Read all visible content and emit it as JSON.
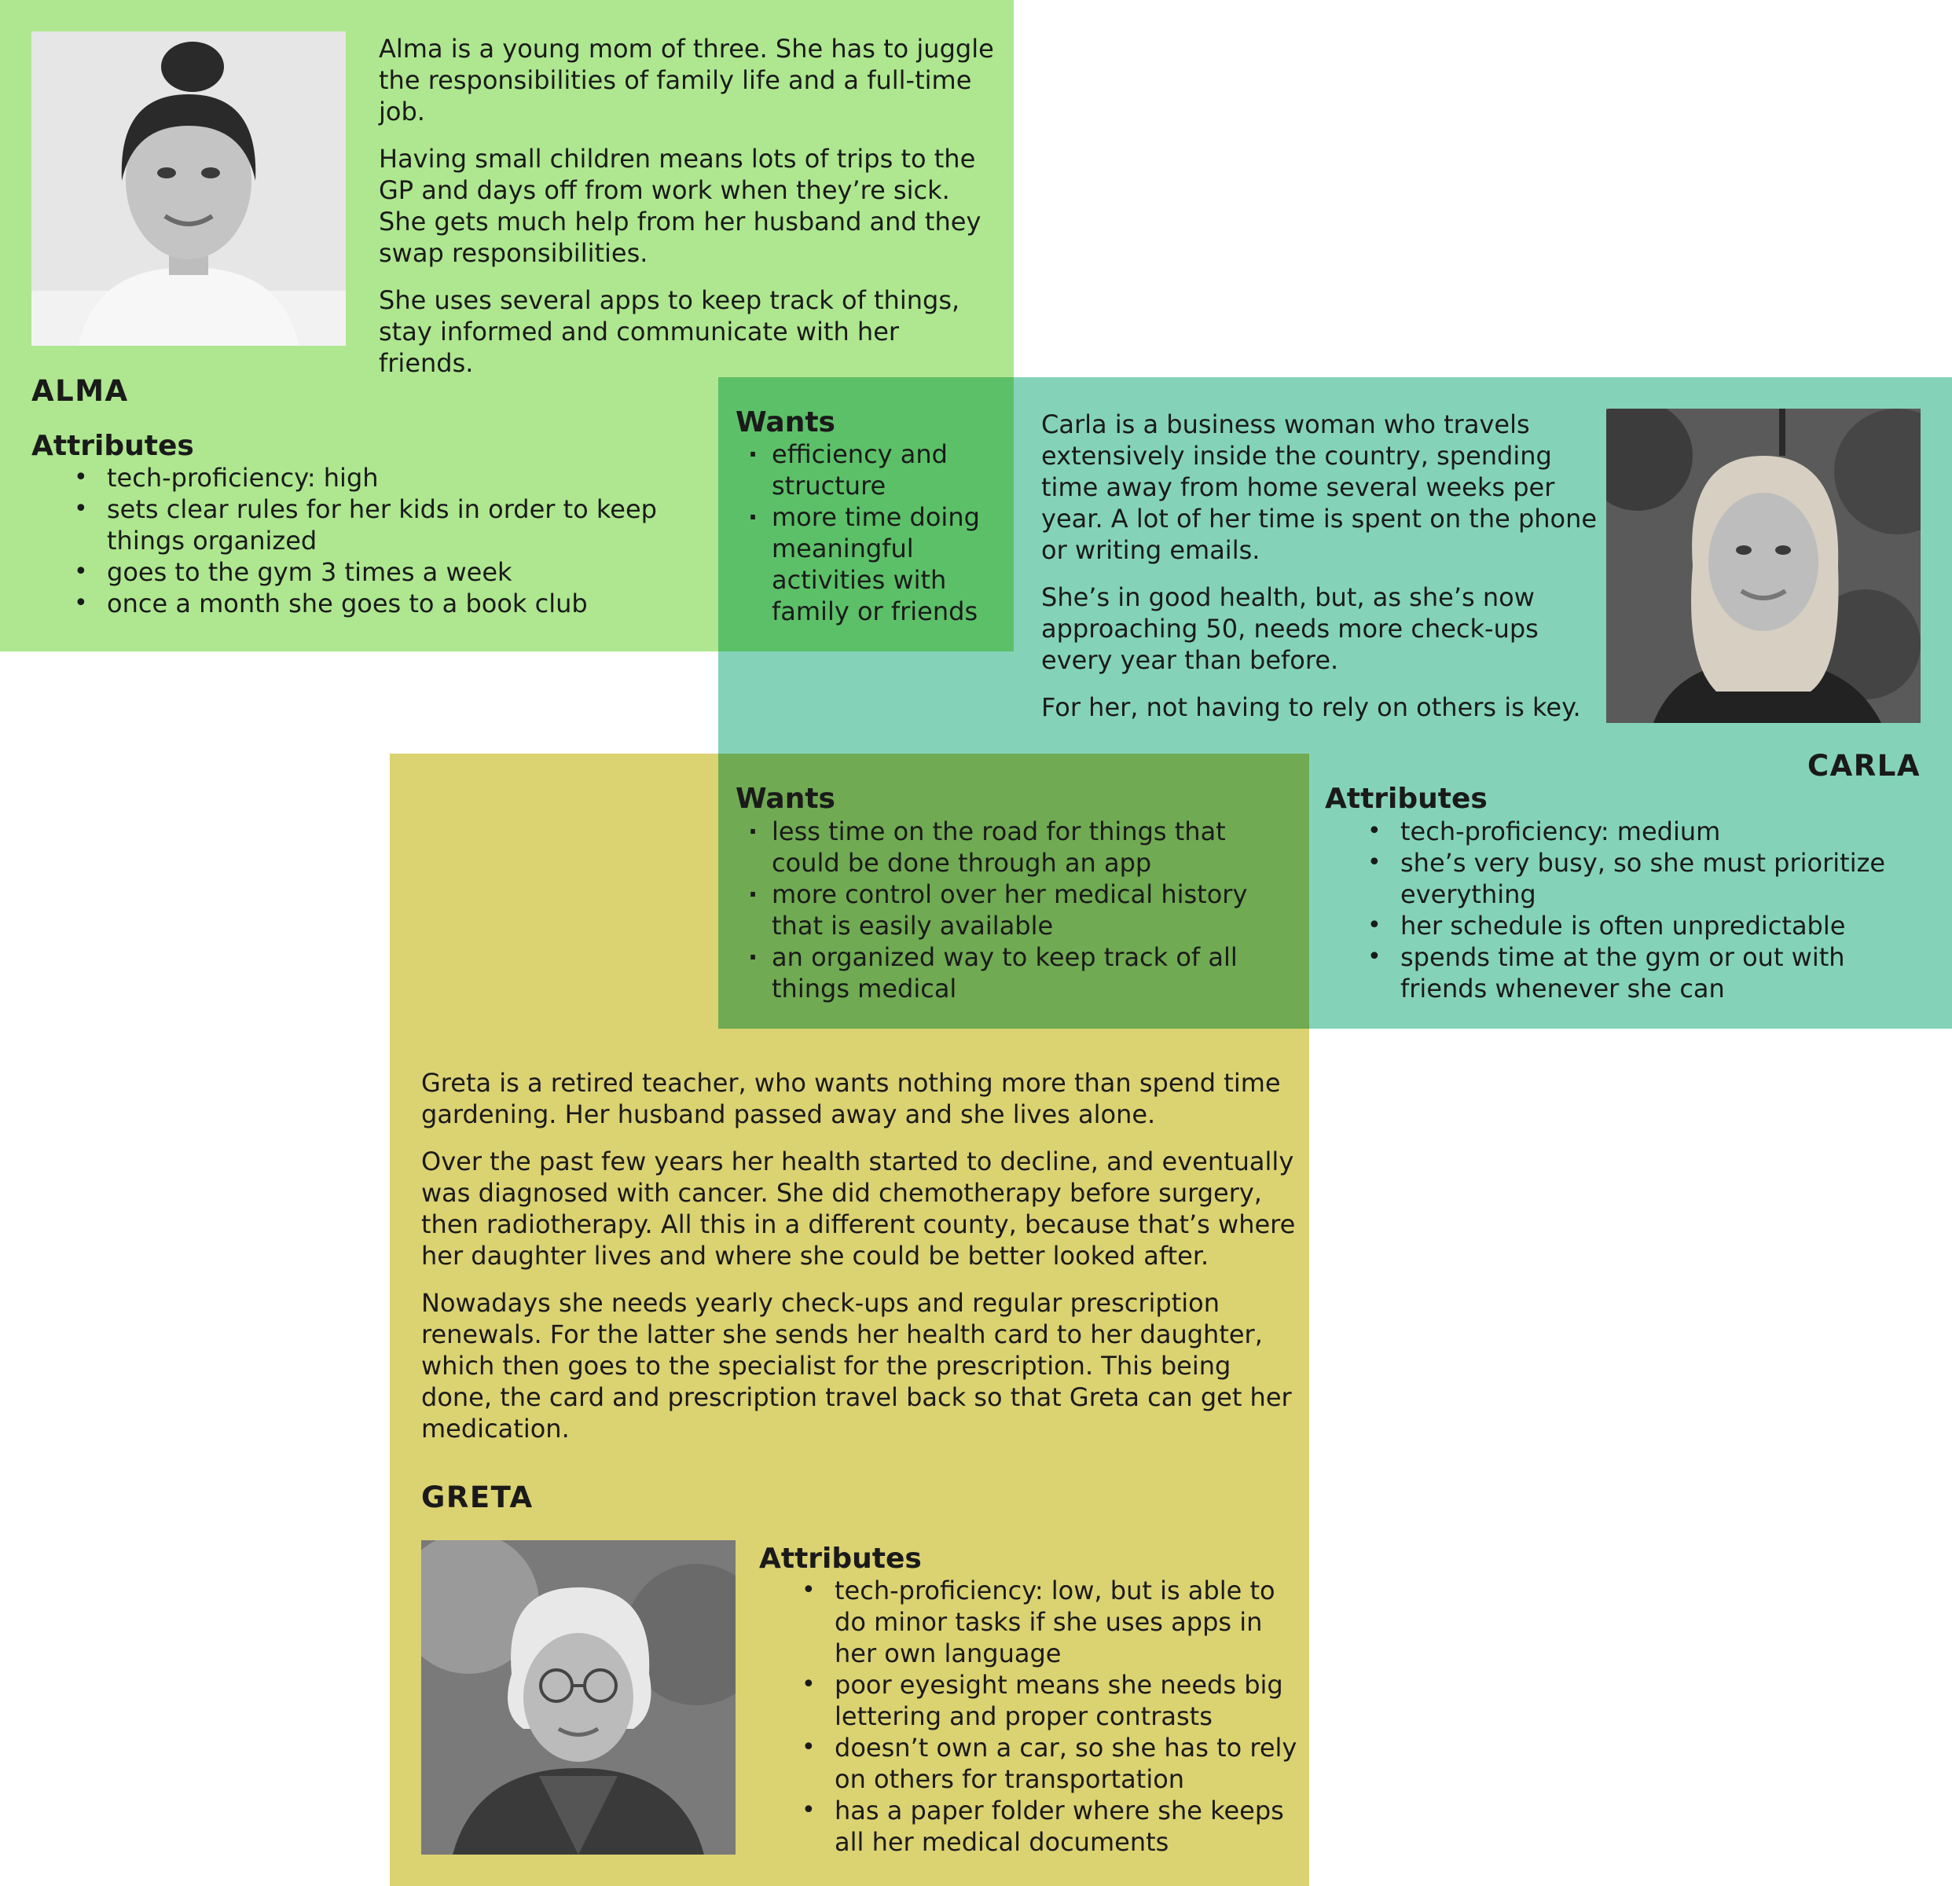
{
  "alma": {
    "name": "ALMA",
    "bio": [
      "Alma is a young mom of three. She has to juggle the responsibilities of family life and a full-time job.",
      "Having small children means lots of trips to the GP and days off from work when they’re sick. She gets much help from her husband and they swap responsibilities.",
      "She uses several apps to keep track of things, stay informed and communicate with her friends."
    ],
    "attributes_heading": "Attributes",
    "attributes": [
      "tech-proficiency: high",
      "sets clear rules for her kids in order to keep things organized",
      "goes to the gym 3 times a week",
      "once a month she goes to a book club"
    ],
    "wants_heading": "Wants",
    "wants": [
      "efficiency and structure",
      "more time doing meaningful activities with family or friends"
    ],
    "color": "#aee78f"
  },
  "carla": {
    "name": "CARLA",
    "bio": [
      "Carla is a business woman who travels extensively inside the country, spending time away from home several weeks per year. A lot of her time is spent on the phone or writing emails.",
      "She’s in good health, but, as she’s now approaching 50, needs more check-ups every year than before.",
      "For her, not having to rely on others is key."
    ],
    "attributes_heading": "Attributes",
    "attributes": [
      "tech-proficiency: medium",
      "she’s very busy, so she must prioritize everything",
      "her schedule is often unpredictable",
      "spends time at the gym or out with friends whenever she can"
    ],
    "wants_heading": "Wants",
    "wants": [
      "less time on the road for things that could be done through an app",
      "more control over her medical history that is easily available",
      "an organized way to keep track of all things medical"
    ],
    "color": "#84d3b9"
  },
  "greta": {
    "name": "GRETA",
    "bio": [
      "Greta is a retired teacher, who wants nothing more than spend time gardening. Her husband passed away and she lives alone.",
      "Over the past few years her health started to decline, and eventually was diagnosed with cancer. She did chemotherapy before surgery, then radiotherapy. All this in a different county, because that’s where her daughter lives and where she could be better looked after.",
      "Nowadays she needs yearly check-ups and regular prescription renewals. For the latter she sends her health card to her daughter, which then goes to the specialist for the prescription. This being done, the card and prescription travel back so that Greta can get her medication."
    ],
    "attributes_heading": "Attributes",
    "attributes": [
      "tech-proficiency: low, but is able to do minor tasks if she uses apps in her own language",
      "poor eyesight means she needs big lettering and proper contrasts",
      "doesn’t own a car, so she has to rely on others for transportation",
      "has a paper folder where she keeps all her medical documents"
    ],
    "color": "#dbd272"
  },
  "overlap_colors": {
    "alma_carla": "#5cc068",
    "carla_greta": "#70aa52"
  }
}
